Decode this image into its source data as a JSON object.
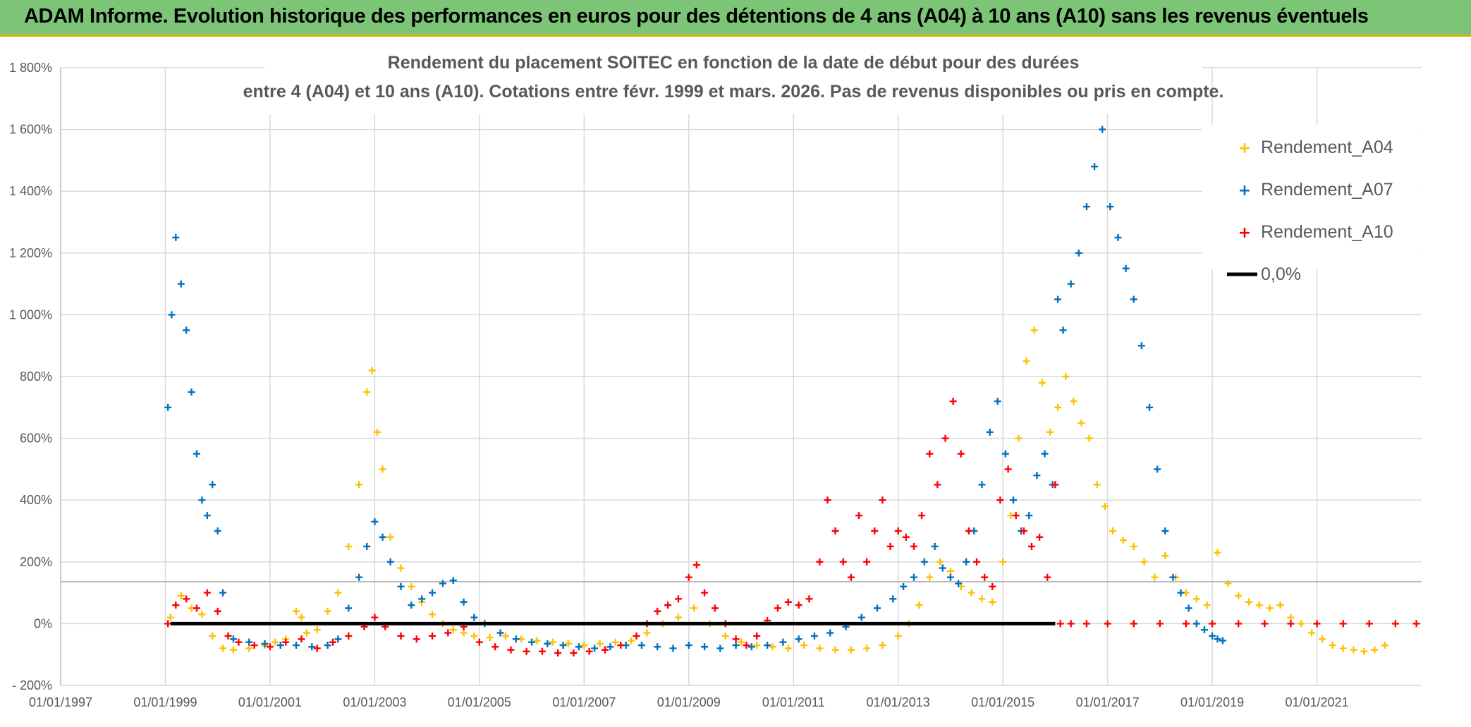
{
  "banner": {
    "title": "ADAM Informe. Evolution historique des performances en euros pour des détentions de 4 ans (A04) à 10 ans (A10) sans les revenus éventuels"
  },
  "colors": {
    "banner_bg": "#7cc576",
    "banner_border": "#d4b106",
    "A04": "#ffc000",
    "A07": "#0070c0",
    "A10": "#ff0000",
    "zero": "#000000",
    "grid": "#d9d9d9"
  },
  "chart_data": {
    "type": "scatter",
    "title_line1": "Rendement du placement SOITEC en fonction de la date de début pour des durées",
    "title_line2": "entre 4 (A04) et 10 ans (A10). Cotations entre févr. 1999 et mars. 2026. Pas de revenus disponibles ou pris en compte.",
    "xlabel": "",
    "ylabel": "",
    "xlim": [
      1997.0,
      2023.0
    ],
    "ylim": [
      -200,
      1800
    ],
    "x_ticks": [
      1997,
      1999,
      2001,
      2003,
      2005,
      2007,
      2009,
      2011,
      2013,
      2015,
      2017,
      2019,
      2021
    ],
    "x_tick_labels": [
      "01/01/1997",
      "01/01/1999",
      "01/01/2001",
      "01/01/2003",
      "01/01/2005",
      "01/01/2007",
      "01/01/2009",
      "01/01/2011",
      "01/01/2013",
      "01/01/2015",
      "01/01/2017",
      "01/01/2019",
      "01/01/2021"
    ],
    "y_ticks": [
      -200,
      0,
      200,
      400,
      600,
      800,
      1000,
      1200,
      1400,
      1600,
      1800
    ],
    "y_tick_labels": [
      "- 200%",
      "0%",
      "200%",
      "400%",
      "600%",
      "800%",
      "1 000%",
      "1 200%",
      "1 400%",
      "1 600%",
      "1 800%"
    ],
    "grid": true,
    "legend_position": "top-right",
    "series": [
      {
        "name": "Rendement_A04",
        "marker": "+",
        "x": [
          1999.1,
          1999.2,
          1999.3,
          1999.5,
          1999.7,
          1999.9,
          2000.1,
          2000.3,
          2000.6,
          2000.9,
          2001.1,
          2001.3,
          2001.5,
          2001.6,
          2001.7,
          2001.9,
          2002.1,
          2002.3,
          2002.5,
          2002.7,
          2002.85,
          2002.95,
          2003.05,
          2003.15,
          2003.3,
          2003.5,
          2003.7,
          2003.9,
          2004.1,
          2004.3,
          2004.5,
          2004.7,
          2004.9,
          2005.2,
          2005.5,
          2005.8,
          2006.1,
          2006.4,
          2006.7,
          2007.0,
          2007.3,
          2007.6,
          2007.9,
          2008.2,
          2008.5,
          2008.8,
          2009.1,
          2009.4,
          2009.7,
          2010.0,
          2010.3,
          2010.6,
          2010.9,
          2011.2,
          2011.5,
          2011.8,
          2012.1,
          2012.4,
          2012.7,
          2013.0,
          2013.2,
          2013.4,
          2013.6,
          2013.8,
          2014.0,
          2014.2,
          2014.4,
          2014.6,
          2014.8,
          2015.0,
          2015.15,
          2015.3,
          2015.45,
          2015.6,
          2015.75,
          2015.9,
          2016.05,
          2016.2,
          2016.35,
          2016.5,
          2016.65,
          2016.8,
          2016.95,
          2017.1,
          2017.3,
          2017.5,
          2017.7,
          2017.9,
          2018.1,
          2018.3,
          2018.5,
          2018.7,
          2018.9,
          2019.1,
          2019.3,
          2019.5,
          2019.7,
          2019.9,
          2020.1,
          2020.3,
          2020.5,
          2020.7,
          2020.9,
          2021.1,
          2021.3,
          2021.5,
          2021.7,
          2021.9,
          2022.1,
          2022.3
        ],
        "values": [
          20,
          60,
          90,
          50,
          30,
          -40,
          -80,
          -85,
          -80,
          -70,
          -60,
          -50,
          40,
          20,
          -30,
          -20,
          40,
          100,
          250,
          450,
          750,
          820,
          620,
          500,
          280,
          180,
          120,
          70,
          30,
          0,
          -20,
          -30,
          -40,
          -45,
          -40,
          -50,
          -55,
          -60,
          -65,
          -70,
          -65,
          -60,
          -55,
          -30,
          0,
          20,
          50,
          0,
          -40,
          -60,
          -70,
          -75,
          -80,
          -70,
          -80,
          -85,
          -85,
          -80,
          -70,
          -40,
          0,
          60,
          150,
          200,
          170,
          120,
          100,
          80,
          70,
          200,
          350,
          600,
          850,
          950,
          780,
          620,
          700,
          800,
          720,
          650,
          600,
          450,
          380,
          300,
          270,
          250,
          200,
          150,
          220,
          150,
          100,
          80,
          60,
          230,
          130,
          90,
          70,
          60,
          50,
          60,
          20,
          0,
          -30,
          -50,
          -70,
          -80,
          -85,
          -90,
          -85,
          -70
        ]
      },
      {
        "name": "Rendement_A07",
        "marker": "+",
        "x": [
          1999.05,
          1999.12,
          1999.2,
          1999.3,
          1999.4,
          1999.5,
          1999.6,
          1999.7,
          1999.8,
          1999.9,
          2000.0,
          2000.1,
          2000.3,
          2000.6,
          2000.9,
          2001.2,
          2001.5,
          2001.8,
          2002.1,
          2002.3,
          2002.5,
          2002.7,
          2002.85,
          2003.0,
          2003.15,
          2003.3,
          2003.5,
          2003.7,
          2003.9,
          2004.1,
          2004.3,
          2004.5,
          2004.7,
          2004.9,
          2005.1,
          2005.4,
          2005.7,
          2006.0,
          2006.3,
          2006.6,
          2006.9,
          2007.2,
          2007.5,
          2007.8,
          2008.1,
          2008.4,
          2008.7,
          2009.0,
          2009.3,
          2009.6,
          2009.9,
          2010.2,
          2010.5,
          2010.8,
          2011.1,
          2011.4,
          2011.7,
          2012.0,
          2012.3,
          2012.6,
          2012.9,
          2013.1,
          2013.3,
          2013.5,
          2013.7,
          2013.85,
          2014.0,
          2014.15,
          2014.3,
          2014.45,
          2014.6,
          2014.75,
          2014.9,
          2015.05,
          2015.2,
          2015.35,
          2015.5,
          2015.65,
          2015.8,
          2015.95,
          2016.05,
          2016.15,
          2016.3,
          2016.45,
          2016.6,
          2016.75,
          2016.9,
          2017.05,
          2017.2,
          2017.35,
          2017.5,
          2017.65,
          2017.8,
          2017.95,
          2018.1,
          2018.25,
          2018.4,
          2018.55,
          2018.7,
          2018.85,
          2019.0,
          2019.1,
          2019.2
        ],
        "values": [
          700,
          1000,
          1250,
          1100,
          950,
          750,
          550,
          400,
          350,
          450,
          300,
          100,
          -50,
          -60,
          -65,
          -70,
          -70,
          -75,
          -70,
          -50,
          50,
          150,
          250,
          330,
          280,
          200,
          120,
          60,
          80,
          100,
          130,
          140,
          70,
          20,
          0,
          -30,
          -50,
          -60,
          -65,
          -70,
          -75,
          -80,
          -75,
          -70,
          -70,
          -75,
          -80,
          -70,
          -75,
          -80,
          -70,
          -75,
          -70,
          -60,
          -50,
          -40,
          -30,
          -10,
          20,
          50,
          80,
          120,
          150,
          200,
          250,
          180,
          150,
          130,
          200,
          300,
          450,
          620,
          720,
          550,
          400,
          300,
          350,
          480,
          550,
          450,
          1050,
          950,
          1100,
          1200,
          1350,
          1480,
          1600,
          1350,
          1250,
          1150,
          1050,
          900,
          700,
          500,
          300,
          150,
          100,
          50,
          0,
          -20,
          -40,
          -50,
          -55
        ]
      },
      {
        "name": "Rendement_A10",
        "marker": "+",
        "x": [
          1999.05,
          1999.2,
          1999.4,
          1999.6,
          1999.8,
          2000.0,
          2000.2,
          2000.4,
          2000.7,
          2001.0,
          2001.3,
          2001.6,
          2001.9,
          2002.2,
          2002.5,
          2002.8,
          2003.0,
          2003.2,
          2003.5,
          2003.8,
          2004.1,
          2004.4,
          2004.7,
          2005.0,
          2005.3,
          2005.6,
          2005.9,
          2006.2,
          2006.5,
          2006.8,
          2007.1,
          2007.4,
          2007.7,
          2008.0,
          2008.2,
          2008.4,
          2008.6,
          2008.8,
          2009.0,
          2009.15,
          2009.3,
          2009.5,
          2009.7,
          2009.9,
          2010.1,
          2010.3,
          2010.5,
          2010.7,
          2010.9,
          2011.1,
          2011.3,
          2011.5,
          2011.65,
          2011.8,
          2011.95,
          2012.1,
          2012.25,
          2012.4,
          2012.55,
          2012.7,
          2012.85,
          2013.0,
          2013.15,
          2013.3,
          2013.45,
          2013.6,
          2013.75,
          2013.9,
          2014.05,
          2014.2,
          2014.35,
          2014.5,
          2014.65,
          2014.8,
          2014.95,
          2015.1,
          2015.25,
          2015.4,
          2015.55,
          2015.7,
          2015.85,
          2016.0,
          2016.1,
          2016.3,
          2016.6,
          2017.0,
          2017.5,
          2018.0,
          2018.5,
          2019.0,
          2019.5,
          2020.0,
          2020.5,
          2021.0,
          2021.5,
          2022.0,
          2022.5,
          2022.9
        ],
        "values": [
          0,
          60,
          80,
          50,
          100,
          40,
          -40,
          -60,
          -70,
          -75,
          -60,
          -50,
          -80,
          -60,
          -40,
          -10,
          20,
          -10,
          -40,
          -50,
          -40,
          -30,
          -10,
          -60,
          -75,
          -85,
          -90,
          -90,
          -95,
          -95,
          -90,
          -85,
          -70,
          -40,
          0,
          40,
          60,
          80,
          150,
          190,
          100,
          50,
          0,
          -50,
          -70,
          -40,
          10,
          50,
          70,
          60,
          80,
          200,
          400,
          300,
          200,
          150,
          350,
          200,
          300,
          400,
          250,
          300,
          280,
          250,
          350,
          550,
          450,
          600,
          720,
          550,
          300,
          200,
          150,
          120,
          400,
          500,
          350,
          300,
          250,
          280,
          150,
          450,
          0,
          0,
          0,
          0,
          0,
          0,
          0,
          0,
          0,
          0,
          0,
          0,
          0,
          0,
          0,
          0
        ]
      },
      {
        "name": "0,0%",
        "type": "line",
        "x": [
          1999.1,
          2016.0
        ],
        "values": [
          0,
          0
        ]
      }
    ]
  }
}
